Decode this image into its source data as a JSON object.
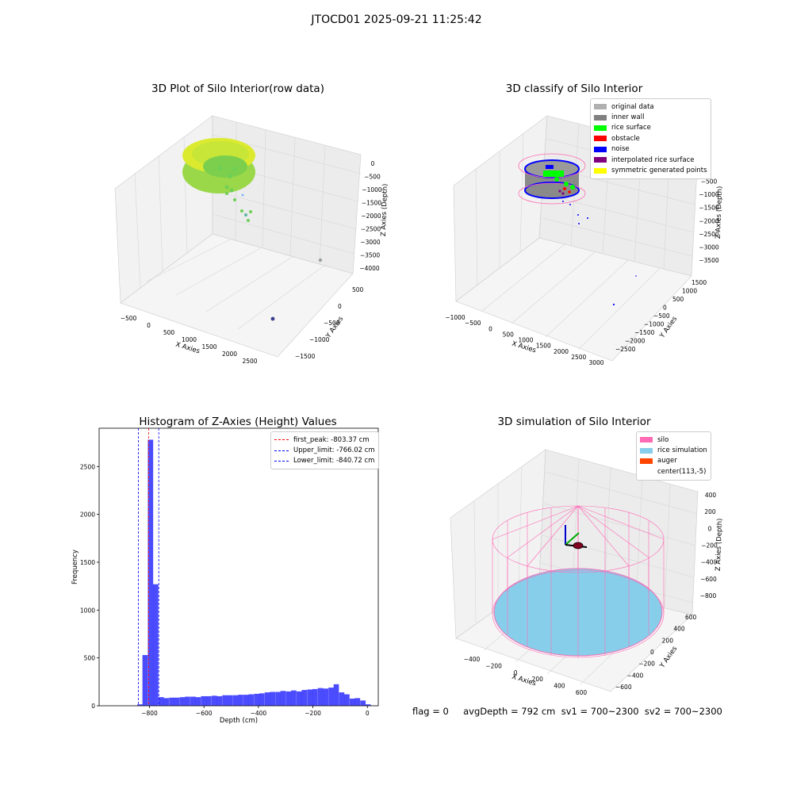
{
  "suptitle": "JTOCD01 2025-09-21 11:25:42",
  "chart_data": [
    {
      "type": "scatter",
      "title": "3D Plot of Silo Interior(row data)",
      "xlabel": "X Axies",
      "ylabel": "Y Axies",
      "zlabel": "Z Axies (Depth)",
      "x_ticks": [
        "−500",
        "0",
        "500",
        "1000",
        "1500",
        "2000",
        "2500"
      ],
      "y_ticks": [
        "500",
        "0",
        "−500",
        "−1000",
        "−1500"
      ],
      "z_ticks": [
        "0",
        "−500",
        "−1000",
        "−1500",
        "−2000",
        "−2500",
        "−3000",
        "−3500",
        "−4000"
      ],
      "colormap": [
        "#440154",
        "#31688e",
        "#35b779",
        "#fde725"
      ],
      "points_description_values": {
        "ring_depth_range": [
          -800,
          0
        ],
        "outliers_depth": [
          -1400,
          -1800,
          -3600
        ]
      }
    },
    {
      "type": "scatter",
      "title": "3D classify of Silo Interior",
      "xlabel": "X Axies",
      "ylabel": "Y Axies",
      "zlabel": "Z Axies (Depth)",
      "x_ticks": [
        "−1000",
        "−500",
        "0",
        "500",
        "1000",
        "1500",
        "2000",
        "2500",
        "3000"
      ],
      "y_ticks": [
        "1500",
        "1000",
        "500",
        "0",
        "−500",
        "−1000",
        "−1500",
        "−2000",
        "−2500"
      ],
      "z_ticks": [
        "0",
        "−500",
        "−1000",
        "−1500",
        "−2000",
        "−2500",
        "−3000",
        "−3500"
      ],
      "legend": [
        {
          "label": "original data",
          "color": "#b0b0b0"
        },
        {
          "label": "inner wall",
          "color": "#808080"
        },
        {
          "label": "rice surface",
          "color": "#00ff00"
        },
        {
          "label": "obstacle",
          "color": "#ff0000"
        },
        {
          "label": "noise",
          "color": "#0000ff"
        },
        {
          "label": "interpolated rice surface",
          "color": "#800080"
        },
        {
          "label": "symmetric generated points",
          "color": "#ffff00"
        }
      ]
    },
    {
      "type": "bar",
      "title": "Histogram of Z-Axies (Height) Values",
      "xlabel": "Depth (cm)",
      "ylabel": "Frequency",
      "xlim": [
        -985,
        40
      ],
      "ylim": [
        0,
        2900
      ],
      "x_ticks": [
        -800,
        -600,
        -400,
        -200,
        0
      ],
      "x_tick_labels": [
        "−800",
        "−600",
        "−400",
        "−200",
        "0"
      ],
      "y_ticks": [
        0,
        500,
        1000,
        1500,
        2000,
        2500
      ],
      "bar_color": "#0000ff",
      "bin_width": 19.5,
      "bins": [
        [
          -845,
          15
        ],
        [
          -826,
          530
        ],
        [
          -806,
          2780
        ],
        [
          -787,
          1270
        ],
        [
          -767,
          90
        ],
        [
          -748,
          80
        ],
        [
          -728,
          85
        ],
        [
          -709,
          85
        ],
        [
          -689,
          90
        ],
        [
          -670,
          95
        ],
        [
          -650,
          95
        ],
        [
          -631,
          90
        ],
        [
          -611,
          100
        ],
        [
          -592,
          100
        ],
        [
          -572,
          105
        ],
        [
          -553,
          100
        ],
        [
          -533,
          110
        ],
        [
          -514,
          110
        ],
        [
          -494,
          110
        ],
        [
          -475,
          115
        ],
        [
          -455,
          115
        ],
        [
          -436,
          120
        ],
        [
          -416,
          125
        ],
        [
          -397,
          130
        ],
        [
          -377,
          140
        ],
        [
          -358,
          145
        ],
        [
          -338,
          145
        ],
        [
          -319,
          155
        ],
        [
          -299,
          150
        ],
        [
          -280,
          160
        ],
        [
          -260,
          150
        ],
        [
          -241,
          165
        ],
        [
          -221,
          170
        ],
        [
          -202,
          175
        ],
        [
          -182,
          185
        ],
        [
          -163,
          180
        ],
        [
          -143,
          190
        ],
        [
          -124,
          225
        ],
        [
          -104,
          140
        ],
        [
          -85,
          120
        ],
        [
          -65,
          75
        ],
        [
          -46,
          80
        ],
        [
          -26,
          55
        ],
        [
          -7,
          15
        ]
      ],
      "lines": [
        {
          "label": "first_peak: -803.37 cm",
          "x": -803.37,
          "color": "#ff0000"
        },
        {
          "label": "Upper_limit: -766.02 cm",
          "x": -766.02,
          "color": "#0000ff"
        },
        {
          "label": "Lower_limit: -840.72 cm",
          "x": -840.72,
          "color": "#0000ff"
        }
      ]
    },
    {
      "type": "surface",
      "title": "3D simulation of Silo Interior",
      "xlabel": "X Axies",
      "ylabel": "Y Axies",
      "zlabel": "Z Axies (Depth)",
      "x_ticks": [
        "−400",
        "−200",
        "0",
        "200",
        "400",
        "600"
      ],
      "y_ticks": [
        "600",
        "400",
        "200",
        "0",
        "−200",
        "−400",
        "−600"
      ],
      "z_ticks": [
        "400",
        "200",
        "0",
        "−200",
        "−400",
        "−600",
        "−800"
      ],
      "legend": [
        {
          "label": "silo",
          "color": "#ff69b4"
        },
        {
          "label": "rice simulation",
          "color": "#87ceeb"
        },
        {
          "label": "auger",
          "color": "#ff4500"
        },
        {
          "label": "center(113,-5)",
          "color": "#ffffff"
        }
      ]
    }
  ],
  "bottom_text": "flag = 0     avgDepth = 792 cm  sv1 = 700~2300  sv2 = 700~2300"
}
